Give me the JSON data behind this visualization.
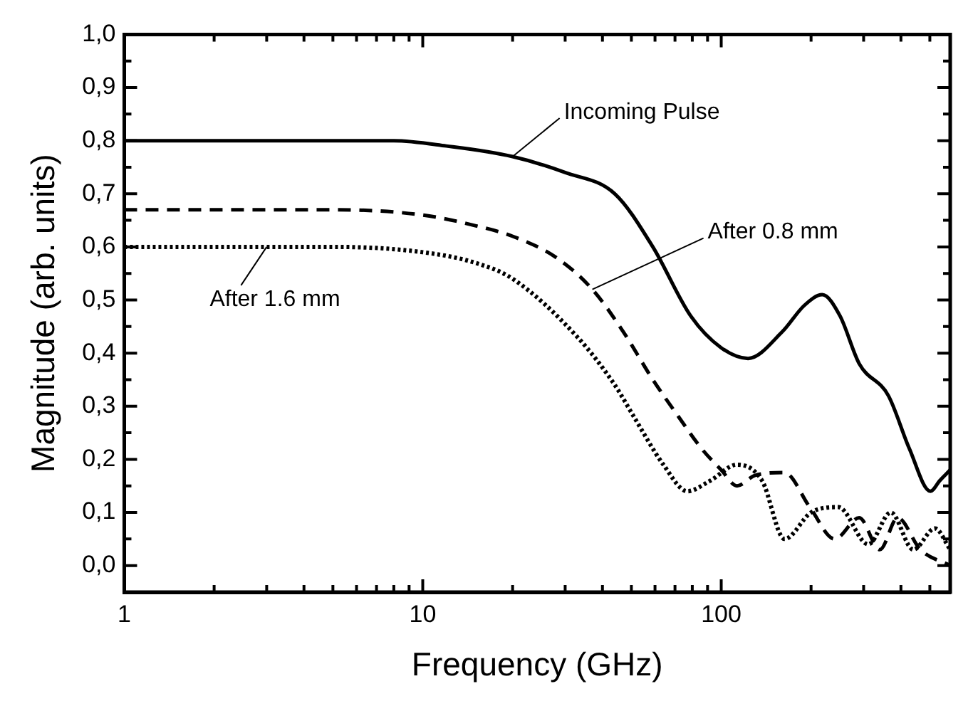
{
  "chart_data": {
    "type": "line",
    "xlabel": "Frequency (GHz)",
    "ylabel": "Magnitude (arb. units)",
    "log": "x",
    "grid": false,
    "legend": false,
    "marker": "none",
    "xlim": [
      1,
      585
    ],
    "ylim": [
      -0.05,
      1.0
    ],
    "xticks": [
      1,
      {
        "value": 2,
        "label": null
      },
      {
        "value": 3,
        "label": null
      },
      {
        "value": 4,
        "label": null
      },
      {
        "value": 5,
        "label": null
      },
      {
        "value": 6,
        "label": null
      },
      {
        "value": 7,
        "label": null
      },
      {
        "value": 8,
        "label": null
      },
      {
        "value": 9,
        "label": null
      },
      10,
      {
        "value": 20,
        "label": null
      },
      {
        "value": 30,
        "label": null
      },
      {
        "value": 40,
        "label": null
      },
      {
        "value": 50,
        "label": null
      },
      {
        "value": 60,
        "label": null
      },
      {
        "value": 70,
        "label": null
      },
      {
        "value": 80,
        "label": null
      },
      {
        "value": 90,
        "label": null
      },
      100,
      {
        "value": 200,
        "label": null
      },
      {
        "value": 300,
        "label": null
      },
      {
        "value": 400,
        "label": null
      },
      {
        "value": 500,
        "label": null
      }
    ],
    "yticks": [
      {
        "value": 0,
        "label": "0,0"
      },
      {
        "value": 0.05,
        "label": null
      },
      {
        "value": 0.1,
        "label": "0,1"
      },
      {
        "value": 0.15,
        "label": null
      },
      {
        "value": 0.2,
        "label": "0,2"
      },
      {
        "value": 0.25,
        "label": null
      },
      {
        "value": 0.3,
        "label": "0,3"
      },
      {
        "value": 0.35,
        "label": null
      },
      {
        "value": 0.4,
        "label": "0,4"
      },
      {
        "value": 0.45,
        "label": null
      },
      {
        "value": 0.5,
        "label": "0,5"
      },
      {
        "value": 0.55,
        "label": null
      },
      {
        "value": 0.6,
        "label": "0,6"
      },
      {
        "value": 0.65,
        "label": null
      },
      {
        "value": 0.7,
        "label": "0,7"
      },
      {
        "value": 0.75,
        "label": null
      },
      {
        "value": 0.8,
        "label": "0,8"
      },
      {
        "value": 0.85,
        "label": null
      },
      {
        "value": 0.9,
        "label": "0,9"
      },
      {
        "value": 0.95,
        "label": null
      },
      {
        "value": 1.0,
        "label": "1,0"
      }
    ],
    "series": [
      {
        "color": "#000000",
        "line_style": "solid",
        "x": [
          1,
          3,
          8,
          12,
          20,
          30,
          44,
          59,
          79,
          100,
          123,
          160,
          190,
          218,
          250,
          290,
          363,
          427,
          502,
          540,
          585
        ],
        "values": [
          0.8,
          0.8,
          0.8,
          0.79,
          0.77,
          0.74,
          0.7,
          0.6,
          0.47,
          0.41,
          0.39,
          0.44,
          0.49,
          0.51,
          0.47,
          0.38,
          0.32,
          0.22,
          0.14,
          0.16,
          0.18
        ]
      },
      {
        "color": "#000000",
        "line_style": "dashed",
        "x": [
          1,
          5,
          10,
          15,
          20,
          28,
          37,
          47,
          59,
          72,
          86,
          100,
          113,
          130,
          163,
          198,
          240,
          290,
          340,
          390,
          465,
          585
        ],
        "values": [
          0.67,
          0.67,
          0.66,
          0.64,
          0.62,
          0.58,
          0.52,
          0.44,
          0.35,
          0.28,
          0.22,
          0.18,
          0.15,
          0.17,
          0.175,
          0.11,
          0.05,
          0.09,
          0.03,
          0.09,
          0.03,
          0.0
        ]
      },
      {
        "color": "#000000",
        "line_style": "dotted",
        "x": [
          1,
          5,
          10,
          15,
          20,
          33,
          44,
          51,
          64,
          77,
          92,
          113,
          137,
          163,
          200,
          247,
          311,
          370,
          440,
          520,
          585
        ],
        "values": [
          0.6,
          0.6,
          0.59,
          0.57,
          0.54,
          0.43,
          0.34,
          0.28,
          0.19,
          0.14,
          0.16,
          0.19,
          0.16,
          0.05,
          0.1,
          0.11,
          0.04,
          0.1,
          0.03,
          0.07,
          0.03
        ]
      }
    ],
    "annotations": [
      {
        "text": "Incoming Pulse",
        "x": 20,
        "y": 0.77
      },
      {
        "text": "After 0.8 mm",
        "x": 37,
        "y": 0.52
      },
      {
        "text": "After 1.6 mm",
        "x": 3,
        "y": 0.6
      }
    ]
  }
}
